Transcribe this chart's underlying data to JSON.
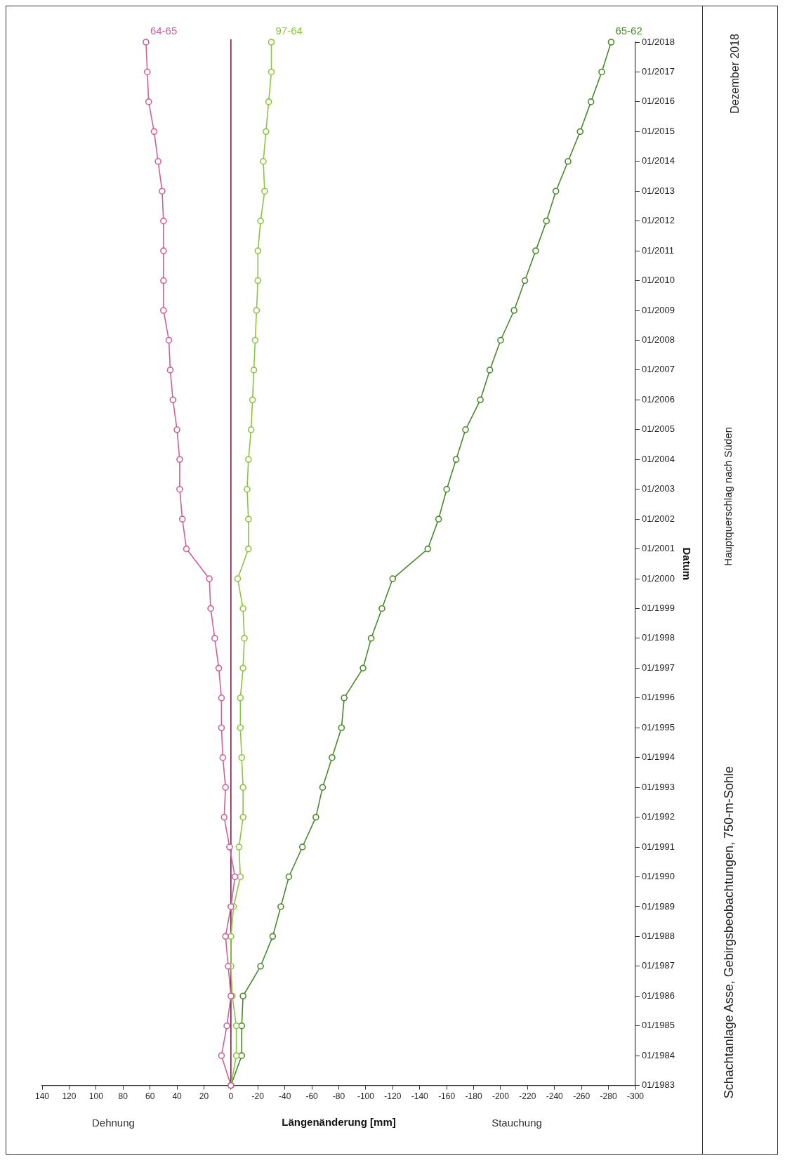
{
  "chart_data": {
    "type": "line",
    "orientation": "horizontal",
    "title": "Schachtanlage Asse, Gebirgsbeobachtungen, 750-m-Sohle",
    "subtitle": "Hauptquerschlag nach Süden",
    "xlabel": "Längenänderung [mm]",
    "ylabel": "Datum",
    "annotations": [
      "Dehnung",
      "Stauchung",
      "Dezember 2018"
    ],
    "categories": [
      "01/2018",
      "01/2017",
      "01/2016",
      "01/2015",
      "01/2014",
      "01/2013",
      "01/2012",
      "01/2011",
      "01/2010",
      "01/2009",
      "01/2008",
      "01/2007",
      "01/2006",
      "01/2005",
      "01/2004",
      "01/2003",
      "01/2002",
      "01/2001",
      "01/2000",
      "01/1999",
      "01/1998",
      "01/1997",
      "01/1996",
      "01/1995",
      "01/1994",
      "01/1993",
      "01/1992",
      "01/1991",
      "01/1990",
      "01/1989",
      "01/1988",
      "01/1987",
      "01/1986",
      "01/1985",
      "01/1984",
      "01/1983"
    ],
    "series": [
      {
        "name": "64-65",
        "color": "#d0609a",
        "values": [
          63,
          62,
          61,
          57,
          54,
          51,
          50,
          50,
          50,
          50,
          46,
          45,
          43,
          40,
          38,
          38,
          36,
          33,
          16,
          15,
          12,
          9,
          7,
          7,
          6,
          4,
          5,
          1,
          -3,
          0,
          4,
          2,
          0,
          3,
          7,
          0
        ]
      },
      {
        "name": "97-64",
        "color": "#8cc63f",
        "values": [
          -30,
          -30,
          -28,
          -26,
          -24,
          -25,
          -22,
          -20,
          -20,
          -19,
          -18,
          -17,
          -16,
          -15,
          -13,
          -12,
          -13,
          -13,
          -5,
          -9,
          -10,
          -9,
          -7,
          -7,
          -8,
          -9,
          -9,
          -6,
          -7,
          -2,
          0,
          0,
          -1,
          -4,
          -4,
          0
        ]
      },
      {
        "name": "65-62",
        "color": "#4a8a2a",
        "values": [
          -282,
          -275,
          -267,
          -259,
          -250,
          -241,
          -234,
          -226,
          -218,
          -210,
          -200,
          -192,
          -185,
          -174,
          -167,
          -160,
          -154,
          -146,
          -120,
          -112,
          -104,
          -98,
          -84,
          -82,
          -75,
          -68,
          -63,
          -53,
          -43,
          -37,
          -31,
          -22,
          -9,
          -8,
          -8,
          0
        ]
      }
    ],
    "ref_lines": [
      {
        "axis": "x",
        "value": 0,
        "color": "#7a1f45"
      }
    ],
    "xlim": [
      140,
      -300
    ],
    "xticks": [
      140,
      120,
      100,
      80,
      60,
      40,
      20,
      0,
      -20,
      -40,
      -60,
      -80,
      -100,
      -120,
      -140,
      -160,
      -180,
      -200,
      -220,
      -240,
      -260,
      -280,
      -300
    ],
    "grid": false,
    "legend": false,
    "marker": "circle",
    "line_style": "solid"
  }
}
